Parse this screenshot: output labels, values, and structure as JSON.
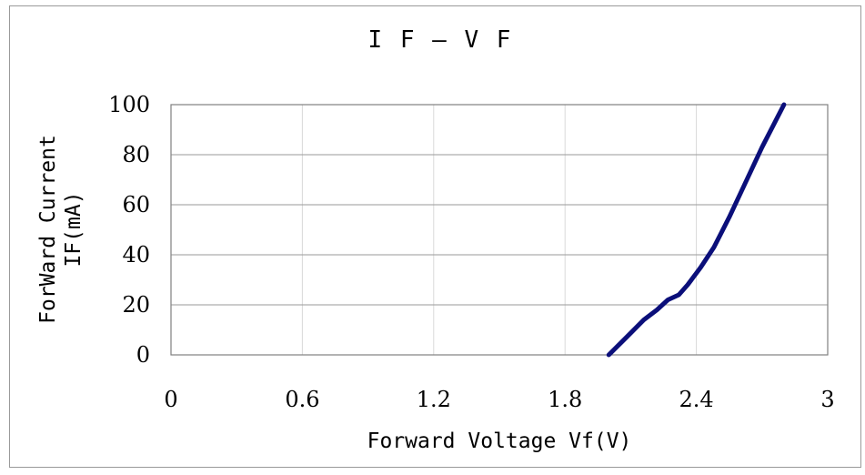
{
  "chart_data": {
    "type": "line",
    "title": "I F  —  V F",
    "xlabel": "Forward Voltage Vf(V)",
    "ylabel_line1": "ForWard Current",
    "ylabel_line2": "IF(mA)",
    "xlim": [
      0,
      3
    ],
    "ylim": [
      0,
      100
    ],
    "x_ticks": [
      "0",
      "0.6",
      "1.2",
      "1.8",
      "2.4",
      "3"
    ],
    "x_tick_values": [
      0,
      0.6,
      1.2,
      1.8,
      2.4,
      3
    ],
    "y_ticks": [
      "0",
      "20",
      "40",
      "60",
      "80",
      "100"
    ],
    "y_tick_values": [
      0,
      20,
      40,
      60,
      80,
      100
    ],
    "grid": true,
    "series": [
      {
        "color": "#0b0f7a",
        "x": [
          2.0,
          2.08,
          2.16,
          2.22,
          2.27,
          2.32,
          2.36,
          2.42,
          2.48,
          2.55,
          2.62,
          2.7,
          2.8
        ],
        "y": [
          0,
          7,
          14,
          18,
          22,
          24,
          28,
          35,
          43,
          55,
          68,
          83,
          100
        ]
      }
    ]
  }
}
